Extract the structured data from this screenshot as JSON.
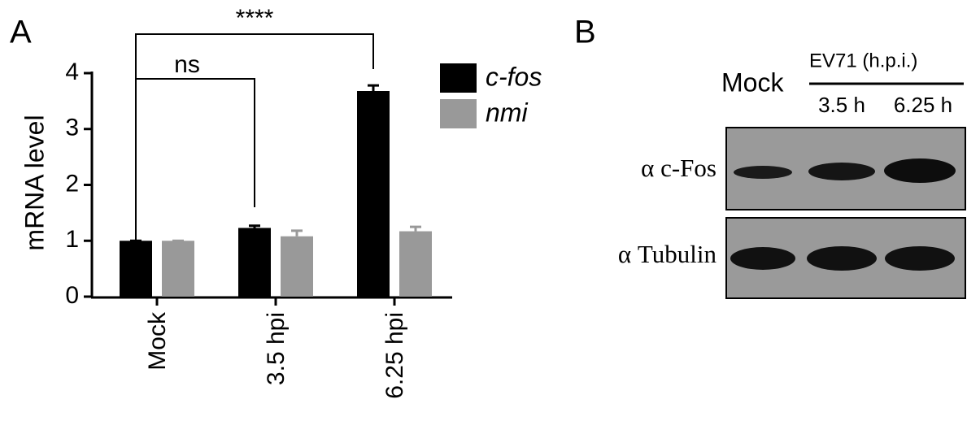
{
  "panel_labels": [
    "A",
    "B"
  ],
  "chart_data": {
    "type": "bar",
    "y_label": "mRNA level",
    "categories": [
      "Mock",
      "3.5 hpi",
      "6.25 hpi"
    ],
    "series": [
      {
        "name": "c-fos",
        "color": "#000000",
        "values": [
          1.0,
          1.23,
          3.68
        ],
        "errors": [
          0,
          0.04,
          0.1
        ]
      },
      {
        "name": "nmi",
        "color": "#999999",
        "values": [
          1.0,
          1.08,
          1.17
        ],
        "errors": [
          0,
          0.1,
          0.08
        ]
      }
    ],
    "ylim": [
      0,
      4
    ],
    "yticks": [
      0,
      1,
      2,
      3,
      4
    ],
    "annotations": [
      "ns",
      "****"
    ]
  },
  "blot": {
    "mock": "Mock",
    "header": "EV71 (h.p.i.)",
    "lanes": [
      "3.5 h",
      "6.25 h"
    ],
    "rows": [
      "α c-Fos",
      "α Tubulin"
    ]
  }
}
